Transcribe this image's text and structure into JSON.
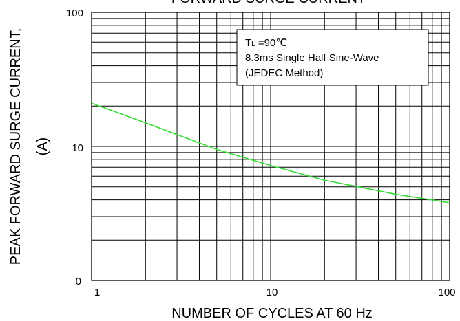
{
  "chart_data": {
    "type": "line",
    "title": "FORWARD SURGE CURRENT",
    "xlabel": "NUMBER OF CYCLES AT 60 Hz",
    "ylabel_line1": "PEAK FORWARD SURGE CURRENT,",
    "ylabel_line2": "(A)",
    "x_scale": "log",
    "y_scale": "log",
    "xlim": [
      1,
      100
    ],
    "ylim_labels": [
      "0",
      "10",
      "100"
    ],
    "x_tick_labels": [
      "1",
      "10",
      "100"
    ],
    "grid": true,
    "annotation": {
      "line1_main": "T",
      "line1_sub": "L",
      "line1_rest": " =90℃",
      "line2": "8.3ms Single Half Sine-Wave",
      "line3": "(JEDEC Method)"
    },
    "series": [
      {
        "color": "#33dd33",
        "x": [
          1,
          2,
          5,
          10,
          20,
          50,
          100
        ],
        "y": [
          21,
          15,
          9.5,
          7.2,
          5.6,
          4.4,
          3.8
        ]
      }
    ]
  }
}
